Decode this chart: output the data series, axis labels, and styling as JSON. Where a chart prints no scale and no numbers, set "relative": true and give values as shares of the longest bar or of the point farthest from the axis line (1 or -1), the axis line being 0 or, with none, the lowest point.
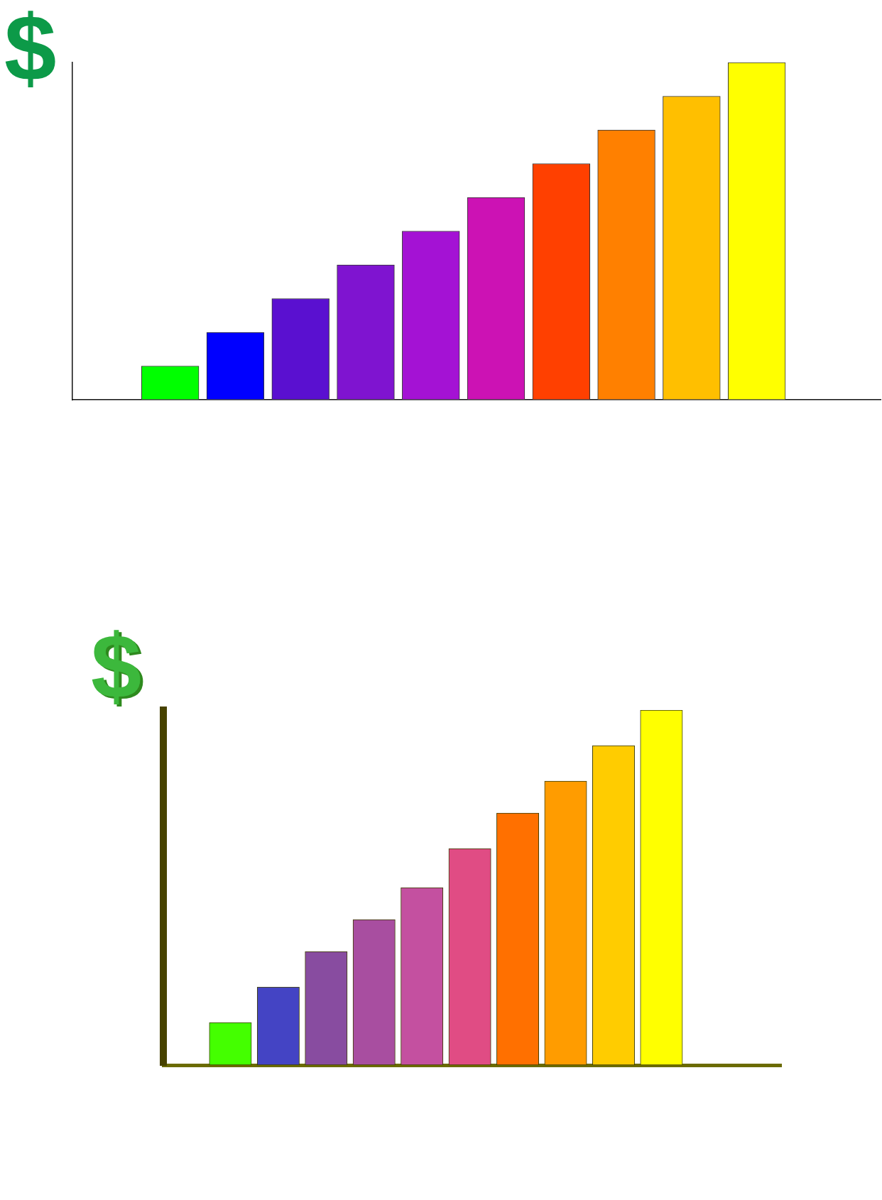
{
  "chart_data": [
    {
      "type": "bar",
      "ylabel": "$",
      "relative": true,
      "categories": [
        null,
        null,
        null,
        null,
        null,
        null,
        null,
        null,
        null,
        null
      ],
      "values": [
        0.1,
        0.2,
        0.3,
        0.4,
        0.5,
        0.6,
        0.7,
        0.8,
        0.9,
        1
      ],
      "colors": [
        "#00ff00",
        "#0000ff",
        "#5a10d0",
        "#7f14d0",
        "#a412d4",
        "#cc12b4",
        "#ff4000",
        "#ff8000",
        "#ffbf00",
        "#ffff00"
      ]
    },
    {
      "type": "bar",
      "ylabel": "$",
      "relative": true,
      "categories": [
        null,
        null,
        null,
        null,
        null,
        null,
        null,
        null,
        null,
        null
      ],
      "values": [
        0.12,
        0.22,
        0.32,
        0.41,
        0.5,
        0.61,
        0.71,
        0.8,
        0.9,
        1
      ],
      "colors": [
        "#44ff00",
        "#4444c4",
        "#884ca0",
        "#a84ea0",
        "#c450a0",
        "#e04c84",
        "#ff7000",
        "#ff9c00",
        "#ffcc00",
        "#ffff00"
      ]
    }
  ]
}
